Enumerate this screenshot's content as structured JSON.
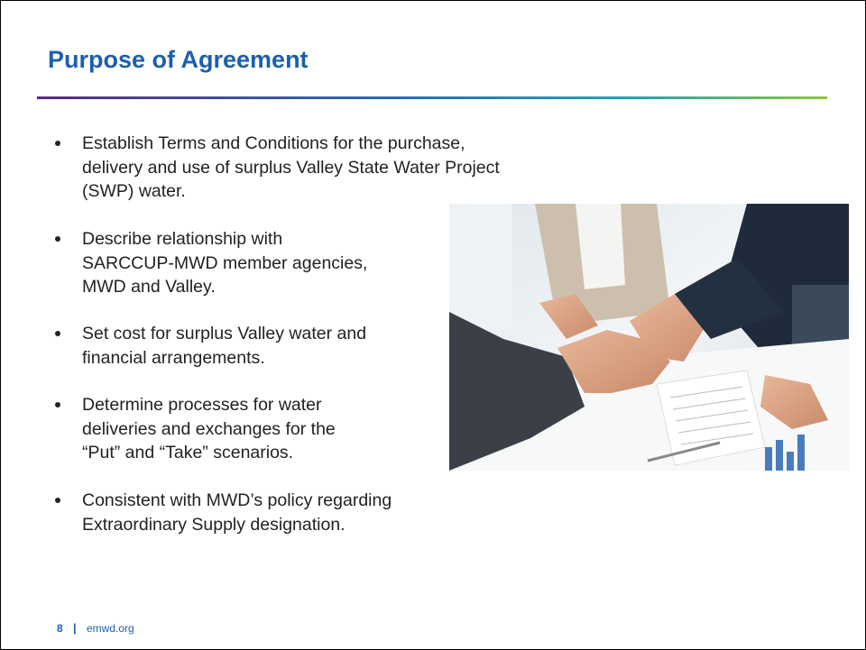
{
  "slide": {
    "title": "Purpose of Agreement",
    "bullets": [
      [
        "Establish Terms and Conditions for the purchase,",
        "delivery and use of surplus Valley State Water Project",
        "(SWP) water."
      ],
      [
        "Describe relationship with",
        "SARCCUP-MWD member agencies,",
        "MWD and Valley."
      ],
      [
        "Set cost for surplus Valley water and",
        "financial arrangements."
      ],
      [
        "Determine processes for water",
        "deliveries and exchanges for the",
        "“Put” and “Take” scenarios."
      ],
      [
        "Consistent with MWD’s policy regarding",
        "Extraordinary Supply designation."
      ]
    ],
    "footer": {
      "page_number": "8",
      "separator": "|",
      "site": "emwd.org"
    }
  }
}
